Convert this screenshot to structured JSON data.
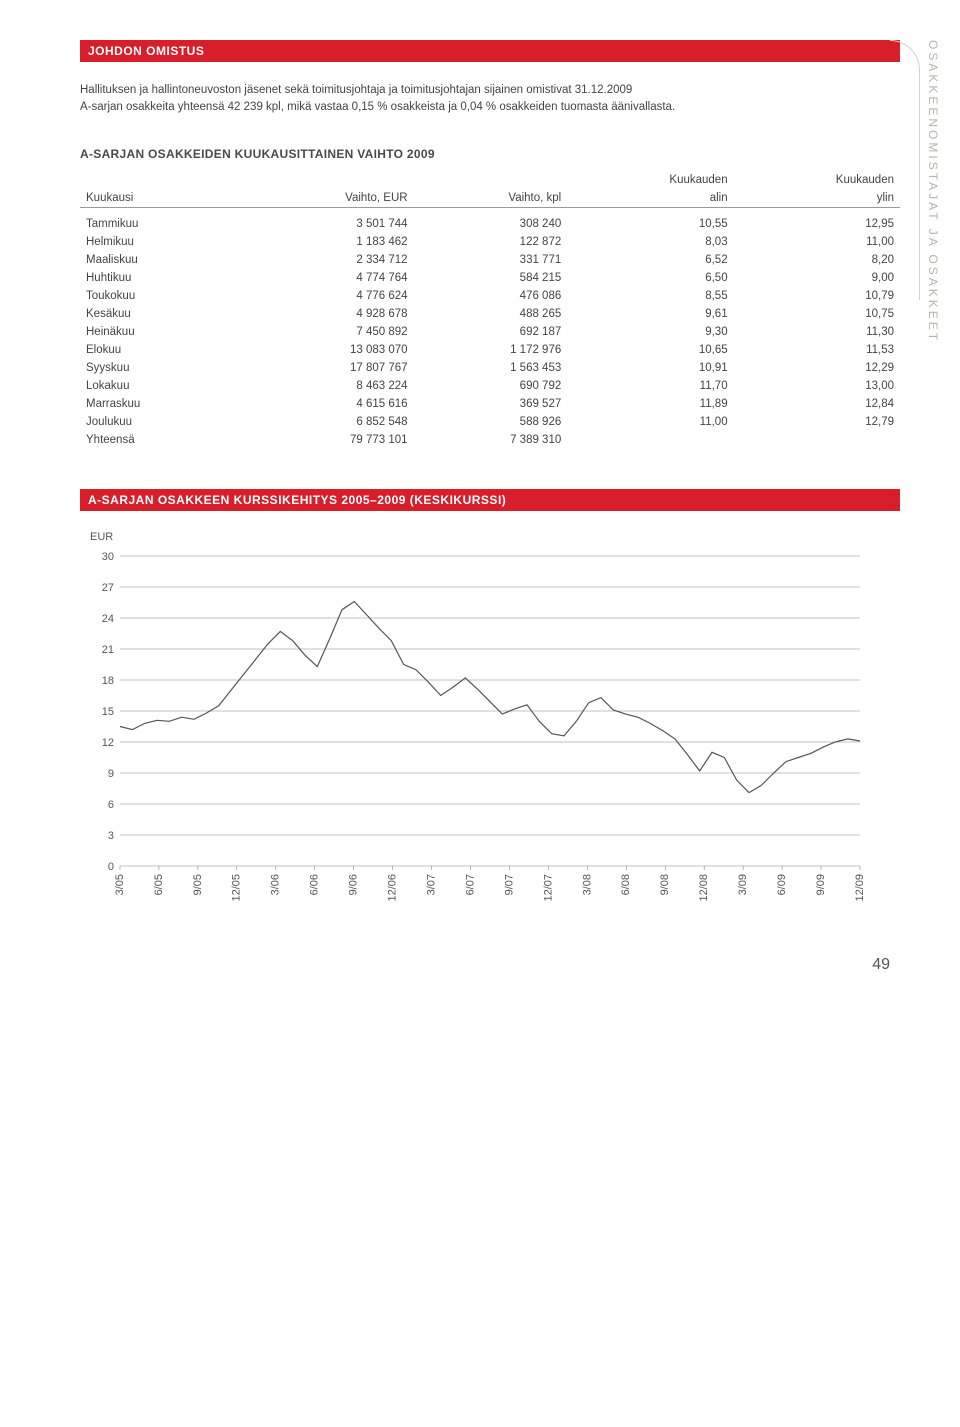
{
  "side_label": "OSAKKEENOMISTAJAT JA OSAKKEET",
  "section1": {
    "title": "JOHDON OMISTUS",
    "intro_line1": "Hallituksen ja hallintoneuvoston jäsenet sekä toimitusjohtaja ja toimitusjohtajan sijainen omistivat 31.12.2009",
    "intro_line2": "A-sarjan osakkeita yhteensä 42 239 kpl, mikä vastaa 0,15 % osakkeista ja 0,04 % osakkeiden tuomasta äänivallasta."
  },
  "table": {
    "title": "A-SARJAN OSAKKEIDEN KUUKAUSITTAINEN VAIHTO 2009",
    "col_month": "Kuukausi",
    "col_vol_eur": "Vaihto, EUR",
    "col_vol_kpl": "Vaihto,  kpl",
    "col_low_top": "Kuukauden",
    "col_low_bot": "alin",
    "col_high_top": "Kuukauden",
    "col_high_bot": "ylin",
    "rows": [
      {
        "m": "Tammikuu",
        "eur": "3 501 744",
        "kpl": "308 240",
        "lo": "10,55",
        "hi": "12,95"
      },
      {
        "m": "Helmikuu",
        "eur": "1 183 462",
        "kpl": "122 872",
        "lo": "8,03",
        "hi": "11,00"
      },
      {
        "m": "Maaliskuu",
        "eur": "2 334 712",
        "kpl": "331 771",
        "lo": "6,52",
        "hi": "8,20"
      },
      {
        "m": "Huhtikuu",
        "eur": "4 774 764",
        "kpl": "584 215",
        "lo": "6,50",
        "hi": "9,00"
      },
      {
        "m": "Toukokuu",
        "eur": "4 776 624",
        "kpl": "476 086",
        "lo": "8,55",
        "hi": "10,79"
      },
      {
        "m": "Kesäkuu",
        "eur": "4 928 678",
        "kpl": "488 265",
        "lo": "9,61",
        "hi": "10,75"
      },
      {
        "m": "Heinäkuu",
        "eur": "7 450 892",
        "kpl": "692 187",
        "lo": "9,30",
        "hi": "11,30"
      },
      {
        "m": "Elokuu",
        "eur": "13 083 070",
        "kpl": "1 172 976",
        "lo": "10,65",
        "hi": "11,53"
      },
      {
        "m": "Syyskuu",
        "eur": "17 807 767",
        "kpl": "1 563 453",
        "lo": "10,91",
        "hi": "12,29"
      },
      {
        "m": "Lokakuu",
        "eur": "8 463 224",
        "kpl": "690 792",
        "lo": "11,70",
        "hi": "13,00"
      },
      {
        "m": "Marraskuu",
        "eur": "4 615 616",
        "kpl": "369 527",
        "lo": "11,89",
        "hi": "12,84"
      },
      {
        "m": "Joulukuu",
        "eur": "6 852 548",
        "kpl": "588 926",
        "lo": "11,00",
        "hi": "12,79"
      },
      {
        "m": "Yhteensä",
        "eur": "79 773 101",
        "kpl": "7 389 310",
        "lo": "",
        "hi": ""
      }
    ]
  },
  "chart": {
    "title": "A-SARJAN OSAKKEEN KURSSIKEHITYS 2005–2009 (KESKIKURSSI)",
    "ylabel": "EUR",
    "type": "line",
    "ylim": [
      0,
      30
    ],
    "ytick_step": 3,
    "yticks": [
      30,
      27,
      24,
      21,
      18,
      15,
      12,
      9,
      6,
      3,
      0
    ],
    "xticks": [
      "3/05",
      "6/05",
      "9/05",
      "12/05",
      "3/06",
      "6/06",
      "9/06",
      "12/06",
      "3/07",
      "6/07",
      "9/07",
      "12/07",
      "3/08",
      "6/08",
      "9/08",
      "12/08",
      "3/09",
      "6/09",
      "9/09",
      "12/09"
    ],
    "line_color": "#555555",
    "grid_color": "#888888",
    "background_color": "#ffffff",
    "label_fontsize": 11,
    "line_width": 1.2,
    "values": [
      13.5,
      13.2,
      13.8,
      14.1,
      14.0,
      14.4,
      14.2,
      14.8,
      15.5,
      17.0,
      18.5,
      20.0,
      21.5,
      22.7,
      21.8,
      20.4,
      19.3,
      22.0,
      24.8,
      25.6,
      24.3,
      23.0,
      21.8,
      19.5,
      19.0,
      17.8,
      16.5,
      17.3,
      18.2,
      17.1,
      15.9,
      14.7,
      15.2,
      15.6,
      14.0,
      12.8,
      12.6,
      14.0,
      15.8,
      16.3,
      15.1,
      14.7,
      14.4,
      13.8,
      13.1,
      12.3,
      10.8,
      9.2,
      11.0,
      10.5,
      8.3,
      7.1,
      7.8,
      9.0,
      10.1,
      10.5,
      10.9,
      11.5,
      12.0,
      12.3,
      12.1
    ]
  },
  "page_number": "49"
}
